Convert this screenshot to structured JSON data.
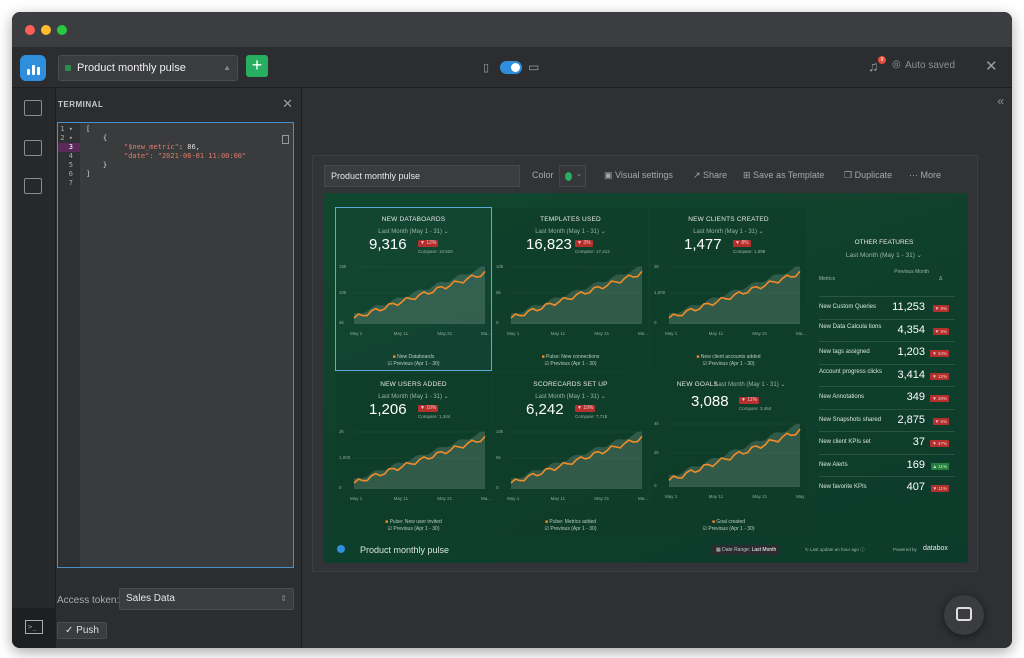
{
  "toolbar": {
    "dashboard_select": "Product monthly pulse",
    "add_label": "+",
    "auto_saved": "Auto saved",
    "notif_count": "9"
  },
  "terminal": {
    "title": "TERMINAL",
    "lines": [
      {
        "n": "1 ▾",
        "code": "["
      },
      {
        "n": "2 ▾",
        "code": "    {"
      },
      {
        "n": "3",
        "key": "\"$new_metric\"",
        "val": ": 86,"
      },
      {
        "n": "4",
        "key": "\"date\"",
        "val": ": \"2021-06-01 11:00:00\""
      },
      {
        "n": "5",
        "code": "    }"
      },
      {
        "n": "6",
        "code": "]"
      },
      {
        "n": "7",
        "code": ""
      }
    ],
    "access_token_label": "Access token:",
    "access_token_value": "Sales Data",
    "push_label": "✓ Push"
  },
  "dashboard": {
    "name": "Product monthly pulse",
    "color_label": "Color",
    "actions": [
      "Visual settings",
      "Share",
      "Save as Template",
      "Duplicate",
      "More"
    ],
    "footer_name": "Product monthly pulse",
    "date_range_label": "Date Range:",
    "date_range_value": "Last Month",
    "last_update": "Last update an hour ago",
    "powered": "Powered by",
    "brand": "databox"
  },
  "tiles": [
    {
      "title": "NEW DATABOARDS",
      "period": "Last Month (May 1 - 31) ⌄",
      "value": "9,316",
      "change": "▼ 12%",
      "compare": "Compare: 10,520",
      "ymax": "15k",
      "ymid": "10k",
      "ylow": "5k",
      "xticks": [
        "May 1",
        "May 11",
        "May 21",
        "Ma..."
      ],
      "legend1": "New Databoards",
      "legend2": "Previous (Apr 1 - 30)"
    },
    {
      "title": "TEMPLATES USED",
      "period": "Last Month (May 1 - 31) ⌄",
      "value": "16,823",
      "change": "▼ 3%",
      "compare": "Compare: 17,412",
      "ymax": "10k",
      "ymid": "5k",
      "ylow": "0",
      "xticks": [
        "May 1",
        "May 11",
        "May 21",
        "Ma..."
      ],
      "legend1": "Pulse: New connections",
      "legend2": "Previous (Apr 1 - 30)"
    },
    {
      "title": "NEW CLIENTS CREATED",
      "period": "Last Month (May 1 - 31) ⌄",
      "value": "1,477",
      "change": "▼ 8%",
      "compare": "Compare: 1,598",
      "ymax": "2k",
      "ymid": "1,000",
      "ylow": "0",
      "xticks": [
        "May 1",
        "May 11",
        "May 21",
        "Ma..."
      ],
      "legend1": "New client accounts added",
      "legend2": "Previous (Apr 1 - 30)"
    },
    {
      "title": "NEW USERS ADDED",
      "period": "Last Month (May 1 - 31) ⌄",
      "value": "1,206",
      "change": "▼ 10%",
      "compare": "Compare: 1,344",
      "ymax": "2k",
      "ymid": "1,000",
      "ylow": "0",
      "xticks": [
        "May 1",
        "May 11",
        "May 21",
        "Ma..."
      ],
      "legend1": "Pulse: New user invited",
      "legend2": "Previous (Apr 1 - 30)"
    },
    {
      "title": "SCORECARDS SET UP",
      "period": "Last Month (May 1 - 31) ⌄",
      "value": "6,242",
      "change": "▼ 19%",
      "compare": "Compare: 7,718",
      "ymax": "10k",
      "ymid": "5k",
      "ylow": "0",
      "xticks": [
        "May 1",
        "May 11",
        "May 21",
        "Ma..."
      ],
      "legend1": "Pulse: Metrics added",
      "legend2": "Previous (Apr 1 - 30)"
    },
    {
      "title": "NEW GOALS",
      "period": "Last Month (May 1 - 31) ⌄",
      "value": "3,088",
      "change": "▼ 11%",
      "compare": "Compare: 3,464",
      "ymax": "4k",
      "ymid": "2k",
      "ylow": "0",
      "xticks": [
        "May 1",
        "May 11",
        "May 21",
        "May 31"
      ],
      "legend1": "Goal created",
      "legend2": "Previous (Apr 1 - 30)"
    }
  ],
  "other_features": {
    "title": "OTHER FEATURES",
    "period": "Last Month (May 1 - 31) ⌄",
    "col_metrics": "Metrics",
    "col_prev": "Previous Month",
    "col_delta": "Δ",
    "rows": [
      {
        "name": "New Custom Queries",
        "value": "11,253",
        "change": "▼ 8%",
        "up": false
      },
      {
        "name": "New Data Calcula tions",
        "value": "4,354",
        "change": "▼ 5%",
        "up": false
      },
      {
        "name": "New tags assigned",
        "value": "1,203",
        "change": "▼ 24%",
        "up": false
      },
      {
        "name": "Account progress clicks",
        "value": "3,414",
        "change": "▼ 12%",
        "up": false
      },
      {
        "name": "New Annotations",
        "value": "349",
        "change": "▼ 20%",
        "up": false
      },
      {
        "name": "New Snapshots shared",
        "value": "2,875",
        "change": "▼ 5%",
        "up": false
      },
      {
        "name": "New client KPIs set",
        "value": "37",
        "change": "▼ 47%",
        "up": false
      },
      {
        "name": "New Alerts",
        "value": "169",
        "change": "▲ 11%",
        "up": true
      },
      {
        "name": "New favorite KPIs",
        "value": "407",
        "change": "▼ 11%",
        "up": false
      }
    ]
  },
  "colors": {
    "accent": "#2f8fdc",
    "green": "#27ae60",
    "line": "#f28c28",
    "badge_down": "#b3302e"
  }
}
